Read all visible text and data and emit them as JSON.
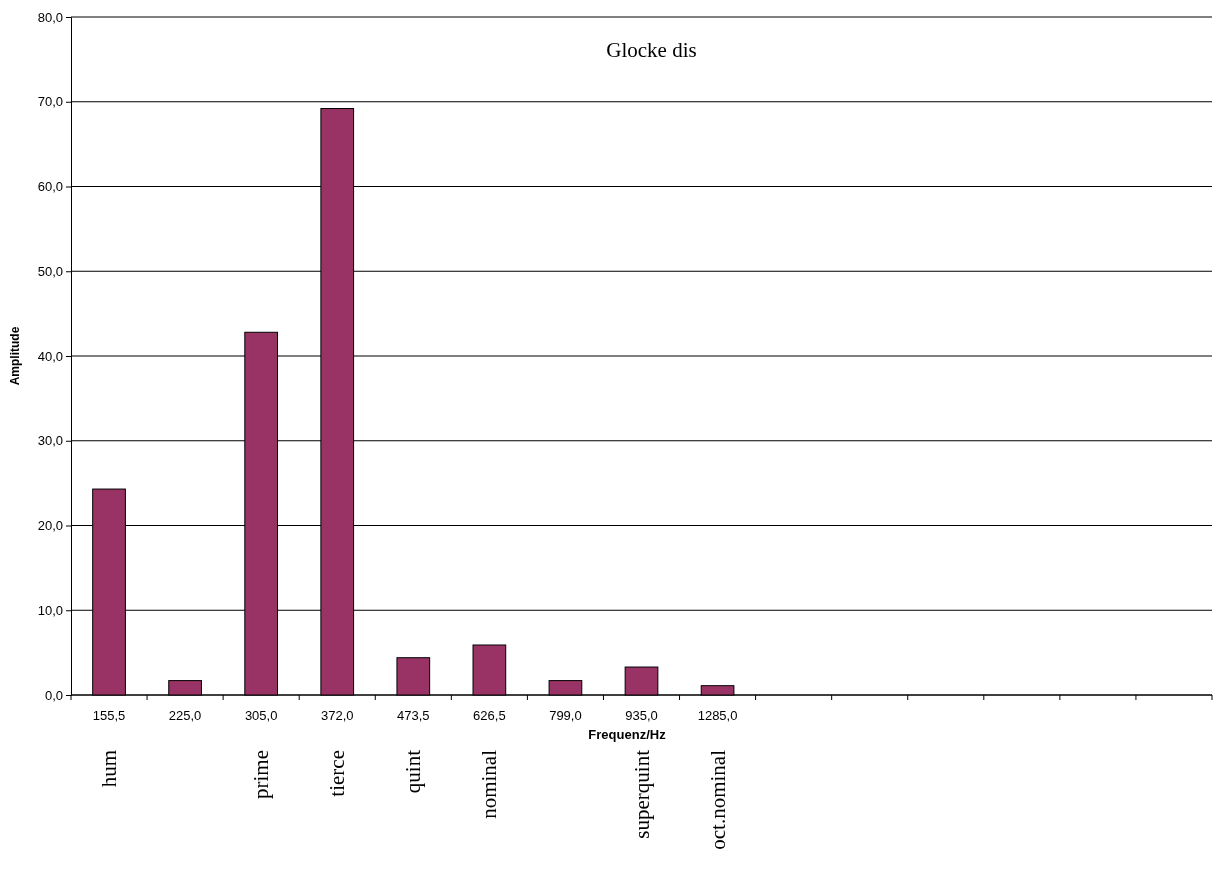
{
  "chart_data": {
    "type": "bar",
    "title": "Glocke dis",
    "xlabel": "Frequenz/Hz",
    "ylabel": "Amplitude",
    "categories": [
      "155,5",
      "225,0",
      "305,0",
      "372,0",
      "473,5",
      "626,5",
      "799,0",
      "935,0",
      "1285,0",
      null,
      null,
      null,
      null,
      null,
      null
    ],
    "values": [
      24.3,
      1.7,
      42.8,
      69.2,
      4.4,
      5.9,
      1.7,
      3.3,
      1.1,
      null,
      null,
      null,
      null,
      null,
      null
    ],
    "color": "#993366",
    "ylim": [
      0,
      80
    ],
    "yticks": [
      {
        "value": 0,
        "label": "0,0"
      },
      {
        "value": 10,
        "label": "10,0"
      },
      {
        "value": 20,
        "label": "20,0"
      },
      {
        "value": 30,
        "label": "30,0"
      },
      {
        "value": 40,
        "label": "40,0"
      },
      {
        "value": 50,
        "label": "50,0"
      },
      {
        "value": 60,
        "label": "60,0"
      },
      {
        "value": 70,
        "label": "70,0"
      },
      {
        "value": 80,
        "label": "80,0"
      }
    ],
    "grid": "y",
    "annotations": [
      "hum",
      "prime",
      "tierce",
      "quint",
      "nominal",
      "superquint",
      "oct.nominal"
    ]
  }
}
